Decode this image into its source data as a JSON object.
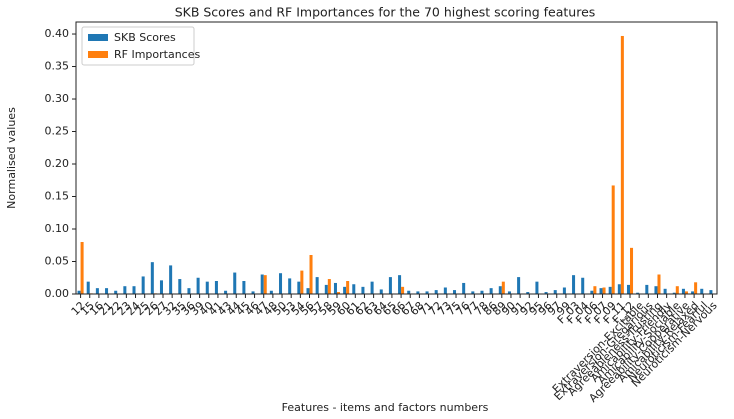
{
  "chart_data": {
    "type": "bar",
    "title": "SKB Scores and RF Importances for the 70 highest scoring features",
    "x_label": "Features - items and factors numbers",
    "y_label": "Normalised values",
    "categories": [
      "12",
      "15",
      "16",
      "21",
      "22",
      "23",
      "24",
      "25",
      "26",
      "27",
      "32",
      "35",
      "36",
      "39",
      "40",
      "41",
      "43",
      "44",
      "45",
      "46",
      "47",
      "48",
      "50",
      "53",
      "54",
      "56",
      "57",
      "58",
      "59",
      "60",
      "61",
      "62",
      "63",
      "64",
      "65",
      "66",
      "67",
      "68",
      "71",
      "72",
      "73",
      "75",
      "76",
      "77",
      "78",
      "86",
      "89",
      "90",
      "91",
      "92",
      "95",
      "96",
      "97",
      "99",
      "F_03",
      "F_04",
      "F_06",
      "F_07",
      "F_09",
      "F_11",
      "F_12",
      "Extraversion-Excitable",
      "Extraversion-Gregarious",
      "Agreeableness-Trusting",
      "Amicability-Friendly",
      "Amicability-Sociable",
      "Agreeability-Cooperative",
      "Amicability-Relaxed",
      "Neuroticism-Fearful",
      "Neuroticism-Nervous"
    ],
    "series": [
      {
        "name": "SKB Scores",
        "color": "#1f77b4",
        "values": [
          0.005,
          0.019,
          0.009,
          0.009,
          0.005,
          0.012,
          0.012,
          0.027,
          0.049,
          0.021,
          0.044,
          0.023,
          0.009,
          0.025,
          0.019,
          0.02,
          0.005,
          0.033,
          0.02,
          0.004,
          0.03,
          0.005,
          0.032,
          0.024,
          0.019,
          0.009,
          0.026,
          0.014,
          0.017,
          0.011,
          0.015,
          0.011,
          0.019,
          0.007,
          0.026,
          0.029,
          0.005,
          0.004,
          0.004,
          0.006,
          0.01,
          0.006,
          0.017,
          0.004,
          0.005,
          0.009,
          0.012,
          0.004,
          0.026,
          0.003,
          0.019,
          0.003,
          0.006,
          0.01,
          0.029,
          0.025,
          0.005,
          0.009,
          0.011,
          0.015,
          0.014,
          0.002,
          0.014,
          0.012,
          0.008,
          0.002,
          0.008,
          0.004,
          0.008,
          0.006
        ]
      },
      {
        "name": "RF Importances",
        "color": "#ff7f0e",
        "values": [
          0.08,
          0.001,
          0,
          0,
          0,
          0,
          0,
          0,
          0.001,
          0,
          0,
          0,
          0,
          0,
          0,
          0,
          0,
          0,
          0,
          0,
          0.029,
          0,
          0,
          0,
          0.036,
          0.06,
          0,
          0.023,
          0.003,
          0.02,
          0,
          0,
          0,
          0,
          0,
          0.011,
          0,
          0,
          0,
          0,
          0,
          0,
          0,
          0,
          0,
          0,
          0.019,
          0,
          0,
          0,
          0,
          0,
          0,
          0,
          0,
          0,
          0.012,
          0.01,
          0.167,
          0.397,
          0.071,
          0,
          0,
          0.03,
          0,
          0.012,
          0.004,
          0.018,
          0,
          0
        ]
      }
    ],
    "ylim": [
      0,
      0.4185
    ],
    "yticks": [
      {
        "value": 0,
        "label": "0.00"
      },
      {
        "value": 0.05,
        "label": "0.05"
      },
      {
        "value": 0.1,
        "label": "0.10"
      },
      {
        "value": 0.15,
        "label": "0.15"
      },
      {
        "value": 0.2,
        "label": "0.20"
      },
      {
        "value": 0.25,
        "label": "0.25"
      },
      {
        "value": 0.3,
        "label": "0.30"
      },
      {
        "value": 0.35,
        "label": "0.35"
      },
      {
        "value": 0.4,
        "label": "0.40"
      }
    ],
    "legend": "upper left"
  }
}
